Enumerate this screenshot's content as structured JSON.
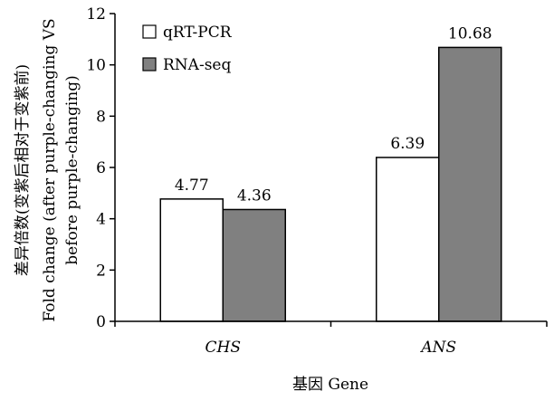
{
  "chart_data": {
    "type": "bar",
    "categories": [
      "CHS",
      "ANS"
    ],
    "series": [
      {
        "name": "qRT-PCR",
        "values": [
          4.77,
          6.39
        ],
        "color": "#ffffff",
        "labels": [
          "4.77",
          "6.39"
        ]
      },
      {
        "name": "RNA-seq",
        "values": [
          4.36,
          10.68
        ],
        "color": "#808080",
        "labels": [
          "4.36",
          "10.68"
        ]
      }
    ],
    "xlabel": "基因 Gene",
    "ylabel_lines": [
      "差异倍数(变紫后相对于变紫前)",
      "Fold change  (after purple-changing VS",
      "before purple-changing)"
    ],
    "ylim": [
      0,
      12
    ],
    "yticks": [
      "0",
      "2",
      "4",
      "6",
      "8",
      "10",
      "12"
    ],
    "grid": false,
    "legend_position": "top-left"
  }
}
